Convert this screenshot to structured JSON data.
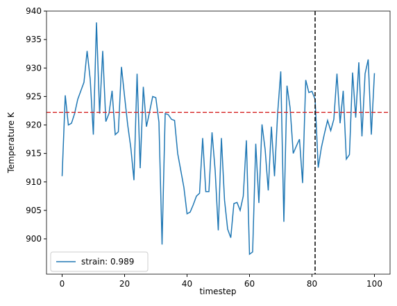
{
  "chart_data": {
    "type": "line",
    "xlabel": "timestep",
    "ylabel": "Temperature K",
    "x": [
      0,
      1,
      2,
      3,
      4,
      5,
      6,
      7,
      8,
      9,
      10,
      11,
      12,
      13,
      14,
      15,
      16,
      17,
      18,
      19,
      20,
      21,
      22,
      23,
      24,
      25,
      26,
      27,
      28,
      29,
      30,
      31,
      32,
      33,
      34,
      35,
      36,
      37,
      38,
      39,
      40,
      41,
      42,
      43,
      44,
      45,
      46,
      47,
      48,
      49,
      50,
      51,
      52,
      53,
      54,
      55,
      56,
      57,
      58,
      59,
      60,
      61,
      62,
      63,
      64,
      65,
      66,
      67,
      68,
      69,
      70,
      71,
      72,
      73,
      74,
      75,
      76,
      77,
      78,
      79,
      80,
      81,
      82,
      83,
      84,
      85,
      86,
      87,
      88,
      89,
      90,
      91,
      92,
      93,
      94,
      95,
      96,
      97,
      98,
      99,
      100
    ],
    "series": [
      {
        "name": "strain: 0.989",
        "color": "#1f77b4",
        "values": [
          911,
          925.2,
          920,
          920.3,
          922,
          924.5,
          926,
          927.5,
          933,
          928,
          918.3,
          938,
          922,
          933,
          920.6,
          922,
          926,
          918.3,
          918.8,
          930.2,
          925,
          920,
          916,
          910.3,
          929,
          912.4,
          926.7,
          919.7,
          922.3,
          925,
          924.8,
          920.5,
          899,
          922,
          921.8,
          921,
          920.8,
          915,
          912,
          909,
          904.4,
          904.7,
          906,
          907.5,
          908,
          917.7,
          908.3,
          908.3,
          918.7,
          912,
          901.5,
          917.7,
          906.8,
          901.7,
          900.2,
          906.2,
          906.4,
          905,
          907.5,
          917.3,
          897.3,
          897.7,
          916.7,
          906.3,
          920.1,
          915.7,
          908.5,
          919.7,
          911,
          922,
          929.4,
          903,
          926.9,
          923,
          915,
          916.3,
          917.5,
          909.8,
          927.9,
          925.7,
          925.9,
          924.5,
          912.5,
          916,
          918.5,
          920.8,
          919,
          921,
          929,
          920.3,
          926,
          914,
          914.8,
          929.2,
          921.3,
          931,
          918,
          929,
          931.5,
          918.3,
          929.1
        ]
      }
    ],
    "hline": {
      "value": 922.2,
      "color": "#d62728"
    },
    "vline": {
      "value": 81,
      "color": "#000000"
    },
    "xlim": [
      -5,
      105
    ],
    "xticks": [
      0,
      20,
      40,
      60,
      80,
      100
    ],
    "ylim": [
      893.8,
      940
    ],
    "yticks": [
      900,
      905,
      910,
      915,
      920,
      925,
      930,
      935,
      940
    ],
    "legend": "lower left"
  }
}
